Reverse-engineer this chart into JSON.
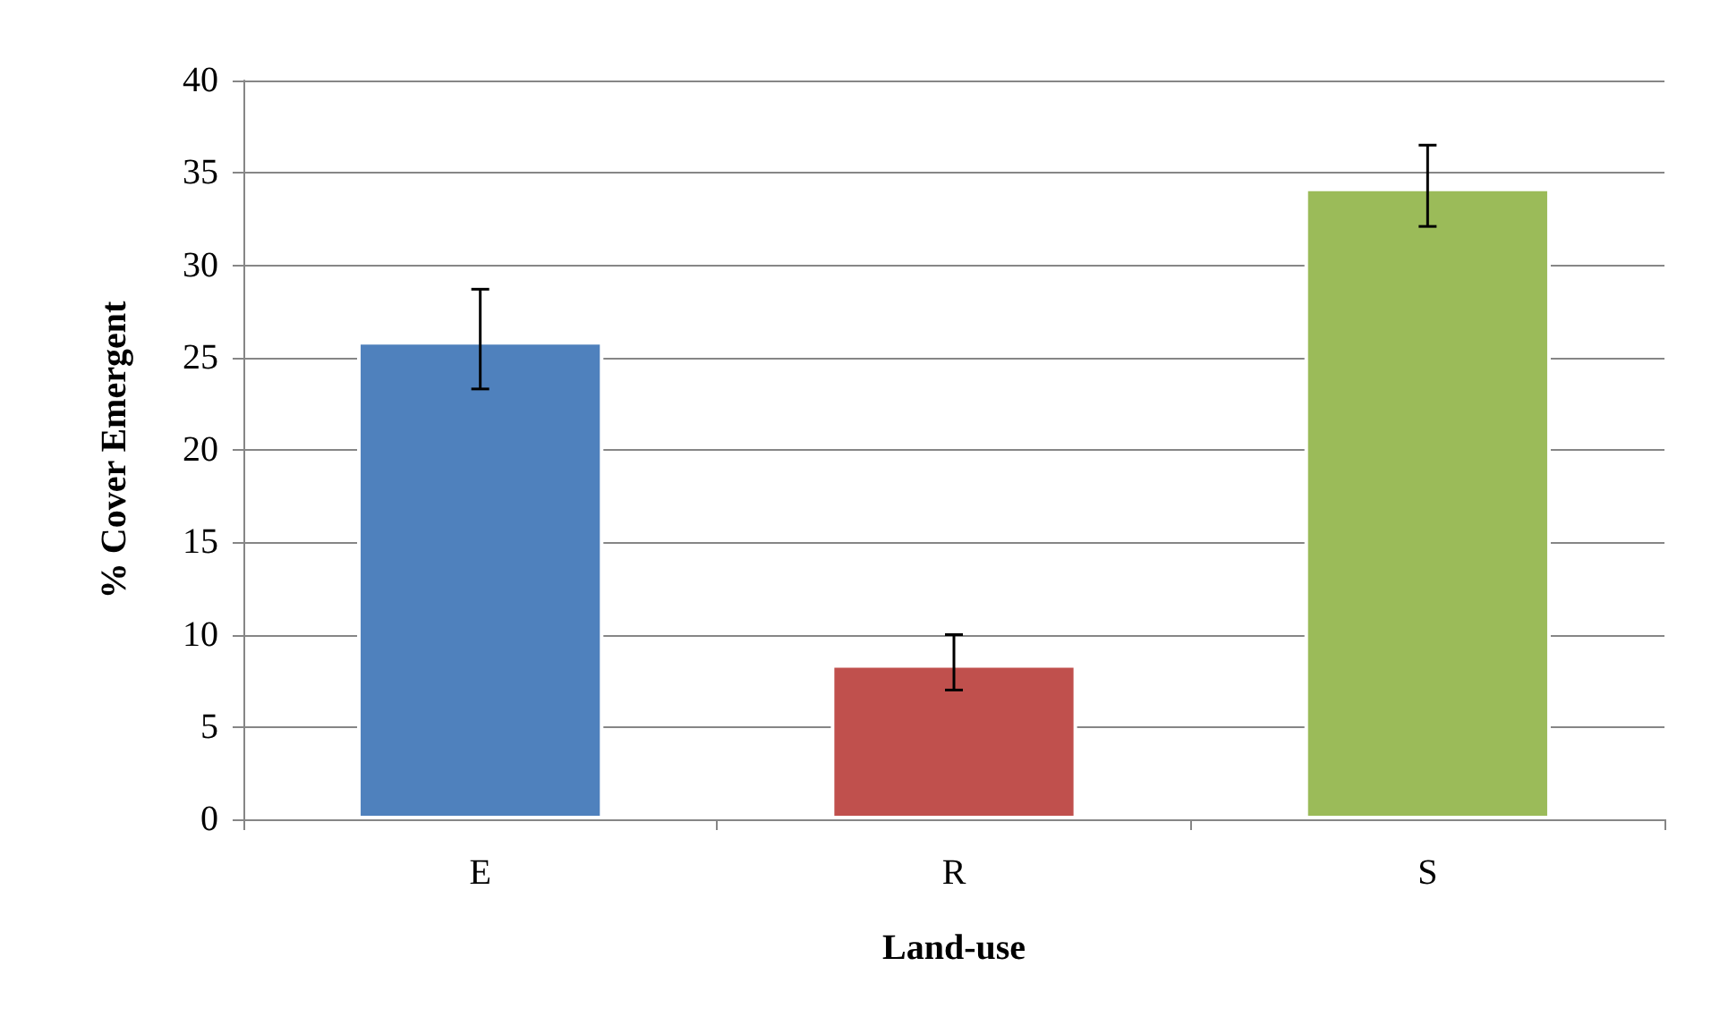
{
  "chart_data": {
    "type": "bar",
    "xlabel": "Land-use",
    "ylabel": "% Cover Emergent",
    "categories": [
      "E",
      "R",
      "S"
    ],
    "values": [
      25.9,
      8.4,
      34.2
    ],
    "colors": [
      "#4f81bd",
      "#c0504d",
      "#9bbb59"
    ],
    "errors": [
      [
        23.3,
        28.7
      ],
      [
        7.0,
        10.0
      ],
      [
        32.1,
        36.5
      ]
    ],
    "ylim": [
      0,
      40
    ],
    "yticks": [
      0,
      5,
      10,
      15,
      20,
      25,
      30,
      35,
      40
    ],
    "grid": "y"
  }
}
